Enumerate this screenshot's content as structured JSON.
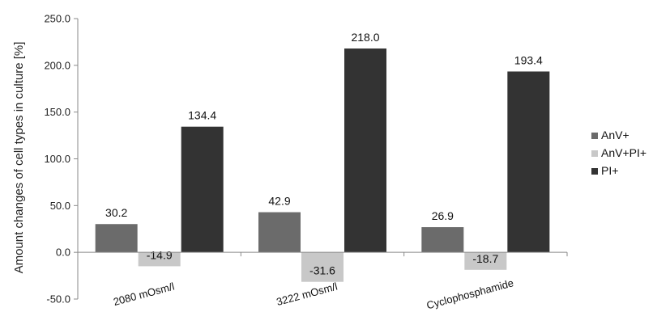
{
  "chart_data": {
    "type": "bar",
    "ylabel": "Amount changes of cell types in culture [%]",
    "ylim": [
      -50,
      250
    ],
    "yticks": [
      "250.0",
      "200.0",
      "150.0",
      "100.0",
      "50.0",
      "0.0",
      "-50.0"
    ],
    "ytick_values": [
      250,
      200,
      150,
      100,
      50,
      0,
      -50
    ],
    "categories": [
      "2080 mOsm/l",
      "3222 mOsm/l",
      "Cyclophosphamide"
    ],
    "series": [
      {
        "name": "AnV+",
        "values": [
          30.2,
          42.9,
          26.9
        ],
        "labels": [
          "30.2",
          "42.9",
          "26.9"
        ],
        "color": "#6b6b6b"
      },
      {
        "name": "AnV+PI+",
        "values": [
          -14.9,
          -31.6,
          -18.7
        ],
        "labels": [
          "-14.9",
          "-31.6",
          "-18.7"
        ],
        "color": "#c8c8c8"
      },
      {
        "name": "PI+",
        "values": [
          134.4,
          218.0,
          193.4
        ],
        "labels": [
          "134.4",
          "218.0",
          "193.4"
        ],
        "color": "#333333"
      }
    ],
    "legend_position": "right",
    "grid": false
  }
}
